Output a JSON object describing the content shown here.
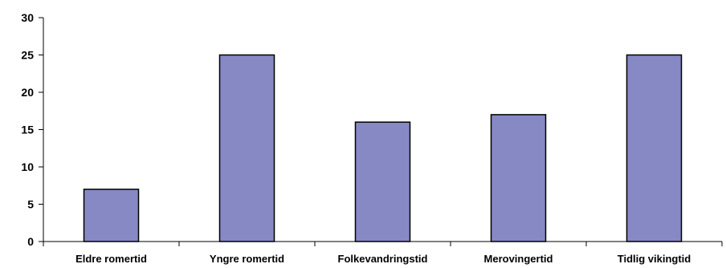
{
  "chart_data": {
    "type": "bar",
    "title": "",
    "xlabel": "",
    "ylabel": "",
    "categories": [
      "Eldre romertid",
      "Yngre romertid",
      "Folkevandringstid",
      "Merovingertid",
      "Tidlig vikingtid"
    ],
    "values": [
      7,
      25,
      16,
      17,
      25
    ],
    "ylim": [
      0,
      30
    ],
    "yticks": [
      0,
      5,
      10,
      15,
      20,
      25,
      30
    ],
    "grid": false,
    "legend": "none",
    "bar_color": "#8689c4",
    "bar_edge_color": "#000000"
  }
}
